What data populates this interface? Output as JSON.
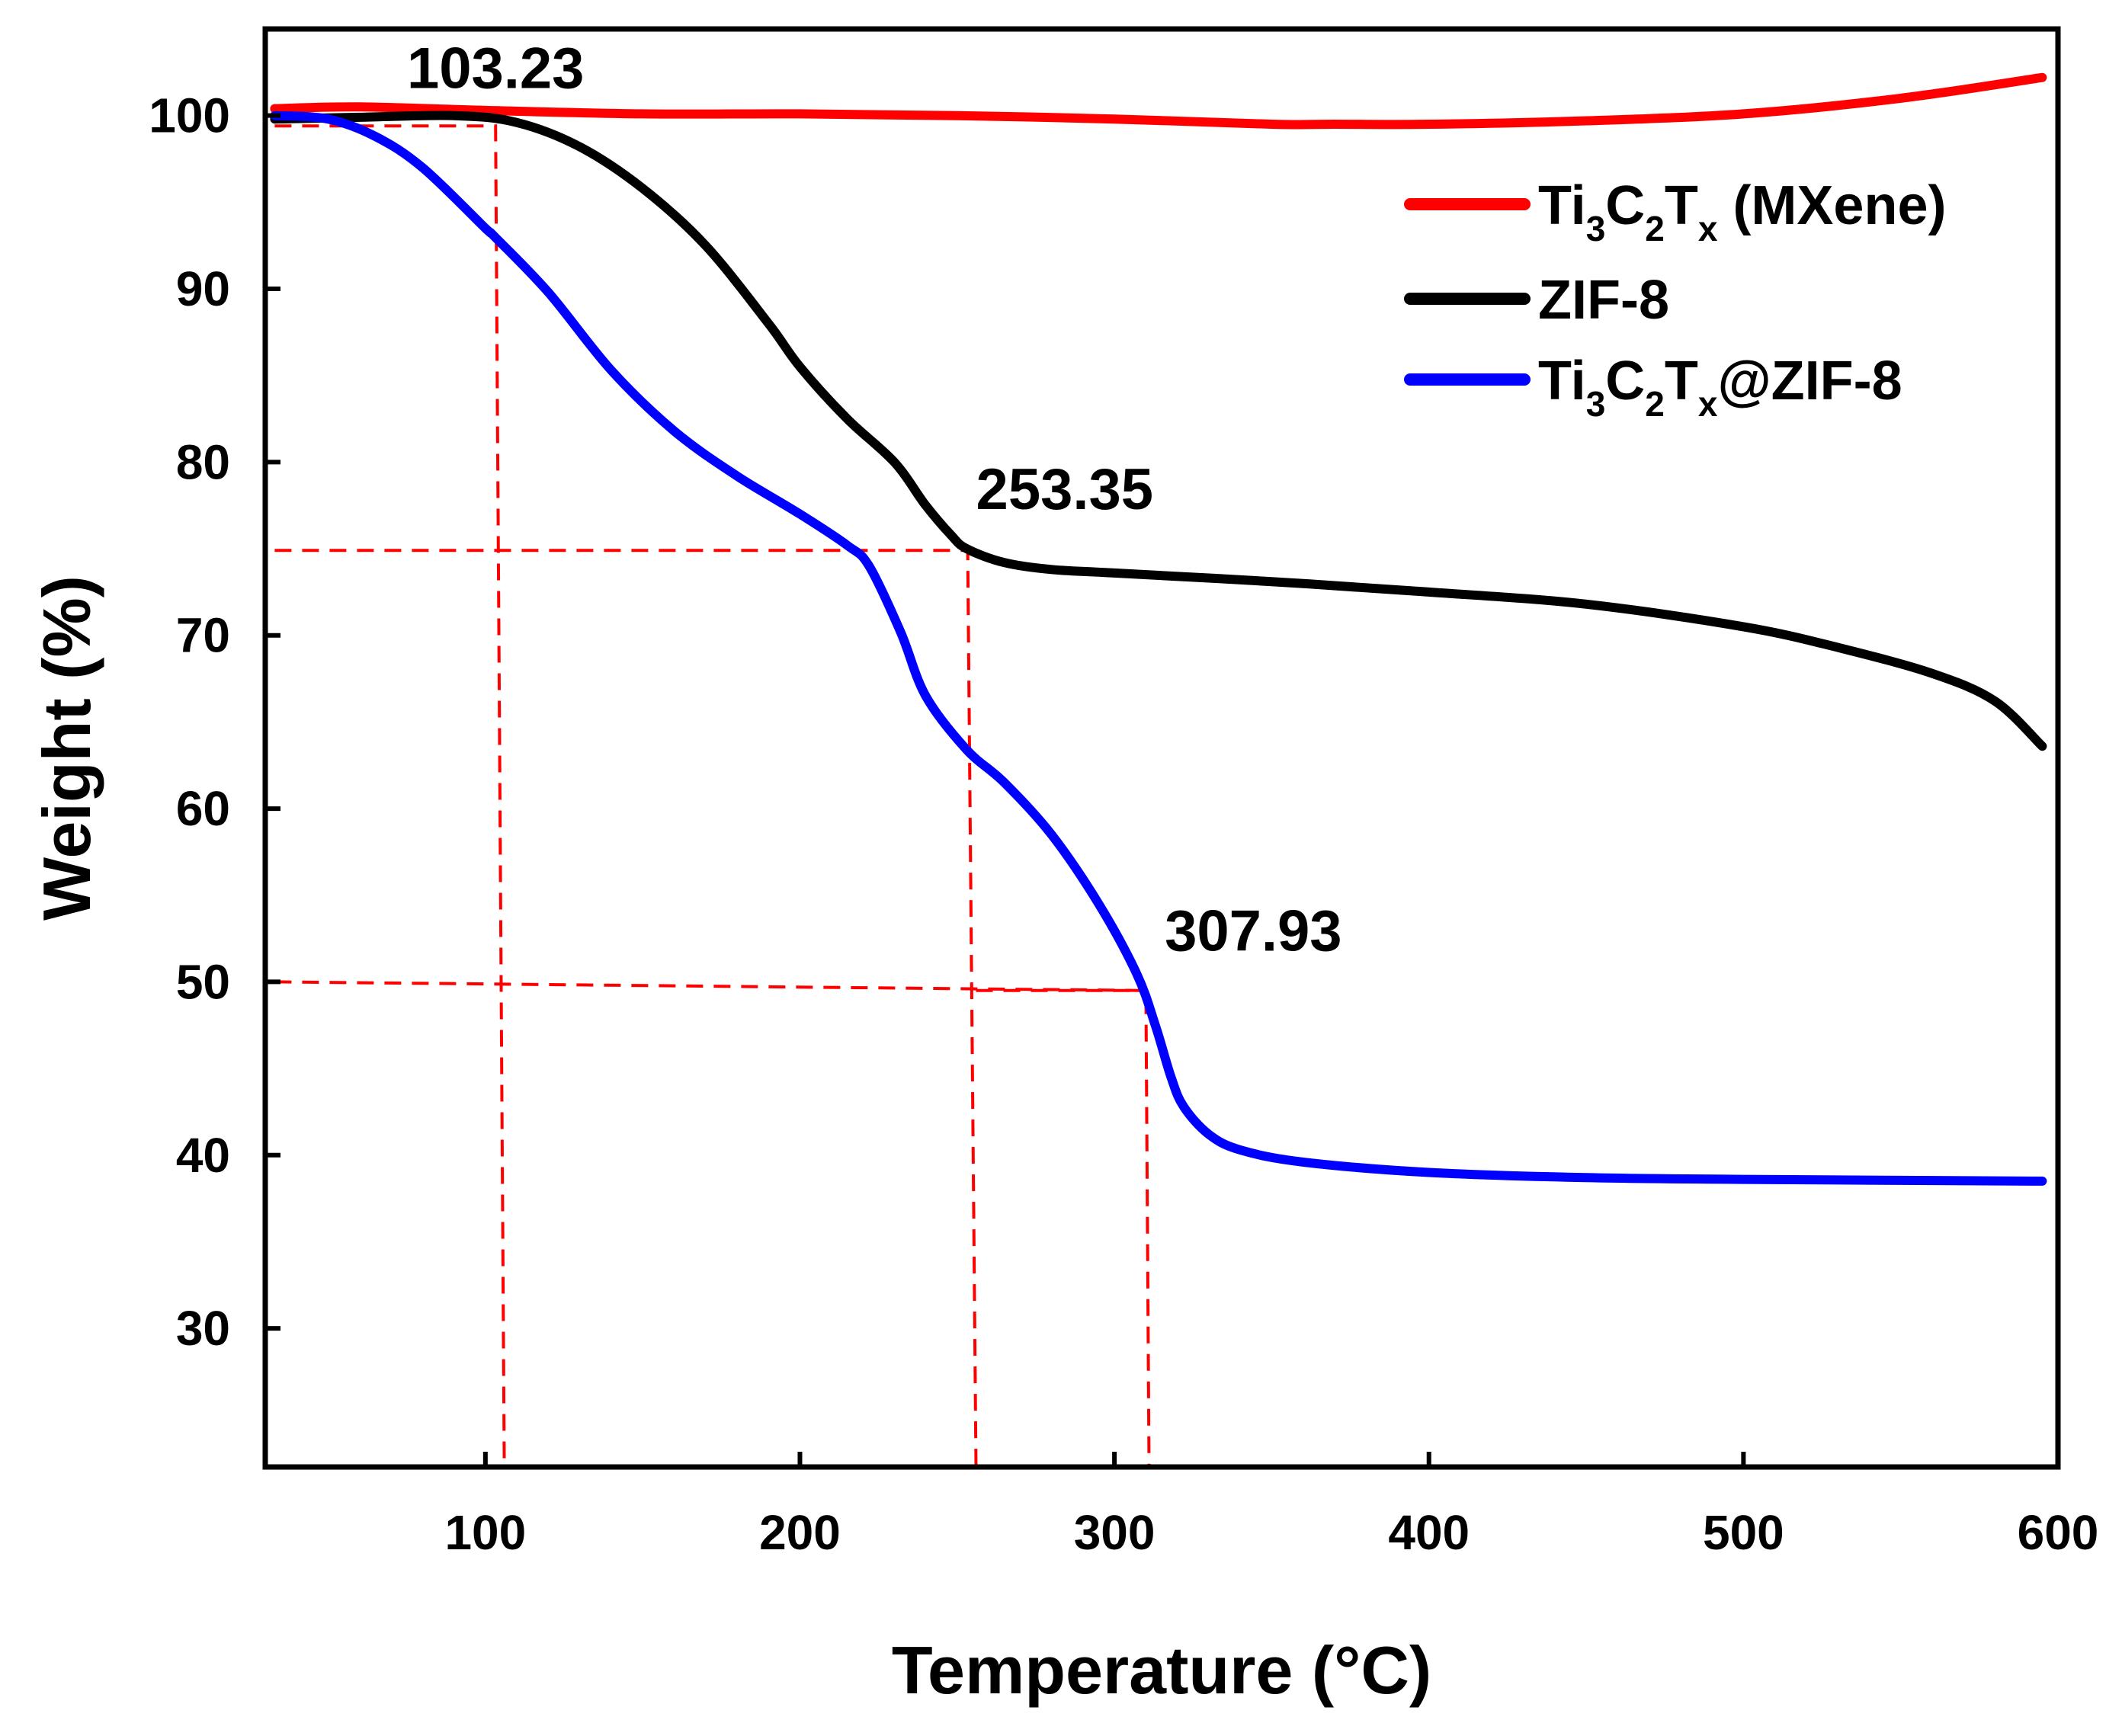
{
  "chart_data": {
    "type": "line",
    "title": "",
    "xlabel": "Temperature (°C)",
    "ylabel": "Weight (%)",
    "xlim": [
      30,
      600
    ],
    "ylim": [
      22,
      105
    ],
    "x_ticks": [
      100,
      200,
      300,
      400,
      500,
      600
    ],
    "y_ticks": [
      30,
      40,
      50,
      60,
      70,
      80,
      90,
      100
    ],
    "legend": {
      "position": "top-right",
      "entries": [
        {
          "parts": [
            [
              "Ti",
              ""
            ],
            [
              "3",
              "sub"
            ],
            [
              "C",
              ""
            ],
            [
              "2",
              "sub"
            ],
            [
              "T",
              ""
            ],
            [
              "x",
              "sub"
            ],
            [
              " (MXene)",
              ""
            ]
          ],
          "color": "#ff0000"
        },
        {
          "parts": [
            [
              "ZIF-8",
              ""
            ]
          ],
          "color": "#000000"
        },
        {
          "parts": [
            [
              "Ti",
              ""
            ],
            [
              "3",
              "sub"
            ],
            [
              "C",
              ""
            ],
            [
              "2",
              "sub"
            ],
            [
              "T",
              ""
            ],
            [
              "x",
              "sub"
            ],
            [
              "@ZIF-8",
              ""
            ]
          ],
          "color": "#0000ff"
        }
      ]
    },
    "series": [
      {
        "name": "Ti3C2Tx (MXene)",
        "color": "#ff0000",
        "points": [
          [
            33,
            100.4
          ],
          [
            60,
            100.5
          ],
          [
            100,
            100.3
          ],
          [
            150,
            100.1
          ],
          [
            200,
            100.1
          ],
          [
            250,
            100.0
          ],
          [
            300,
            99.8
          ],
          [
            350,
            99.5
          ],
          [
            370,
            99.5
          ],
          [
            400,
            99.5
          ],
          [
            450,
            99.7
          ],
          [
            500,
            100.1
          ],
          [
            550,
            101.0
          ],
          [
            595,
            102.2
          ]
        ]
      },
      {
        "name": "ZIF-8",
        "color": "#000000",
        "points": [
          [
            33,
            99.8
          ],
          [
            60,
            99.9
          ],
          [
            90,
            100.0
          ],
          [
            110,
            99.6
          ],
          [
            130,
            98.2
          ],
          [
            150,
            95.8
          ],
          [
            170,
            92.5
          ],
          [
            190,
            88.0
          ],
          [
            200,
            85.5
          ],
          [
            215,
            82.5
          ],
          [
            230,
            80.0
          ],
          [
            240,
            77.5
          ],
          [
            248,
            75.8
          ],
          [
            253,
            75.0
          ],
          [
            265,
            74.2
          ],
          [
            280,
            73.8
          ],
          [
            300,
            73.6
          ],
          [
            350,
            73.1
          ],
          [
            400,
            72.5
          ],
          [
            450,
            71.8
          ],
          [
            500,
            70.5
          ],
          [
            530,
            69.3
          ],
          [
            560,
            67.8
          ],
          [
            580,
            66.2
          ],
          [
            595,
            63.6
          ]
        ]
      },
      {
        "name": "Ti3C2Tx@ZIF-8",
        "color": "#0000ff",
        "points": [
          [
            33,
            100.0
          ],
          [
            50,
            99.8
          ],
          [
            65,
            98.8
          ],
          [
            80,
            97.0
          ],
          [
            100,
            93.5
          ],
          [
            103,
            93.0
          ],
          [
            120,
            89.8
          ],
          [
            140,
            85.3
          ],
          [
            160,
            81.8
          ],
          [
            180,
            79.2
          ],
          [
            200,
            77.0
          ],
          [
            215,
            75.2
          ],
          [
            222,
            74.0
          ],
          [
            232,
            70.2
          ],
          [
            240,
            66.5
          ],
          [
            253,
            63.4
          ],
          [
            265,
            61.5
          ],
          [
            280,
            58.5
          ],
          [
            295,
            54.5
          ],
          [
            307,
            50.5
          ],
          [
            313,
            47.5
          ],
          [
            318,
            44.5
          ],
          [
            322,
            42.8
          ],
          [
            330,
            41.2
          ],
          [
            340,
            40.3
          ],
          [
            360,
            39.6
          ],
          [
            400,
            39.0
          ],
          [
            450,
            38.7
          ],
          [
            500,
            38.6
          ],
          [
            595,
            38.5
          ]
        ]
      }
    ],
    "guides": [
      {
        "points": [
          [
            33,
            99.4
          ],
          [
            103.23,
            99.4
          ],
          [
            103.23,
            99.4
          ],
          [
            106,
            22
          ]
        ]
      },
      {
        "points": [
          [
            33,
            74.9
          ],
          [
            253.35,
            74.9
          ],
          [
            253.35,
            74.9
          ],
          [
            256,
            22
          ]
        ]
      },
      {
        "points": [
          [
            33,
            50.0
          ],
          [
            310,
            49.5
          ],
          [
            310,
            49.5
          ],
          [
            311,
            22
          ]
        ]
      },
      {
        "points": [
          [
            256,
            49.5
          ],
          [
            310,
            49.5
          ]
        ]
      }
    ],
    "annotations": [
      {
        "text": "103.23",
        "x": 103.23,
        "y": 101.6,
        "anchor": "middle"
      },
      {
        "text": "253.35",
        "x": 256,
        "y": 77.3,
        "anchor": "start"
      },
      {
        "text": "307.93",
        "x": 316,
        "y": 51.8,
        "anchor": "start"
      }
    ]
  }
}
